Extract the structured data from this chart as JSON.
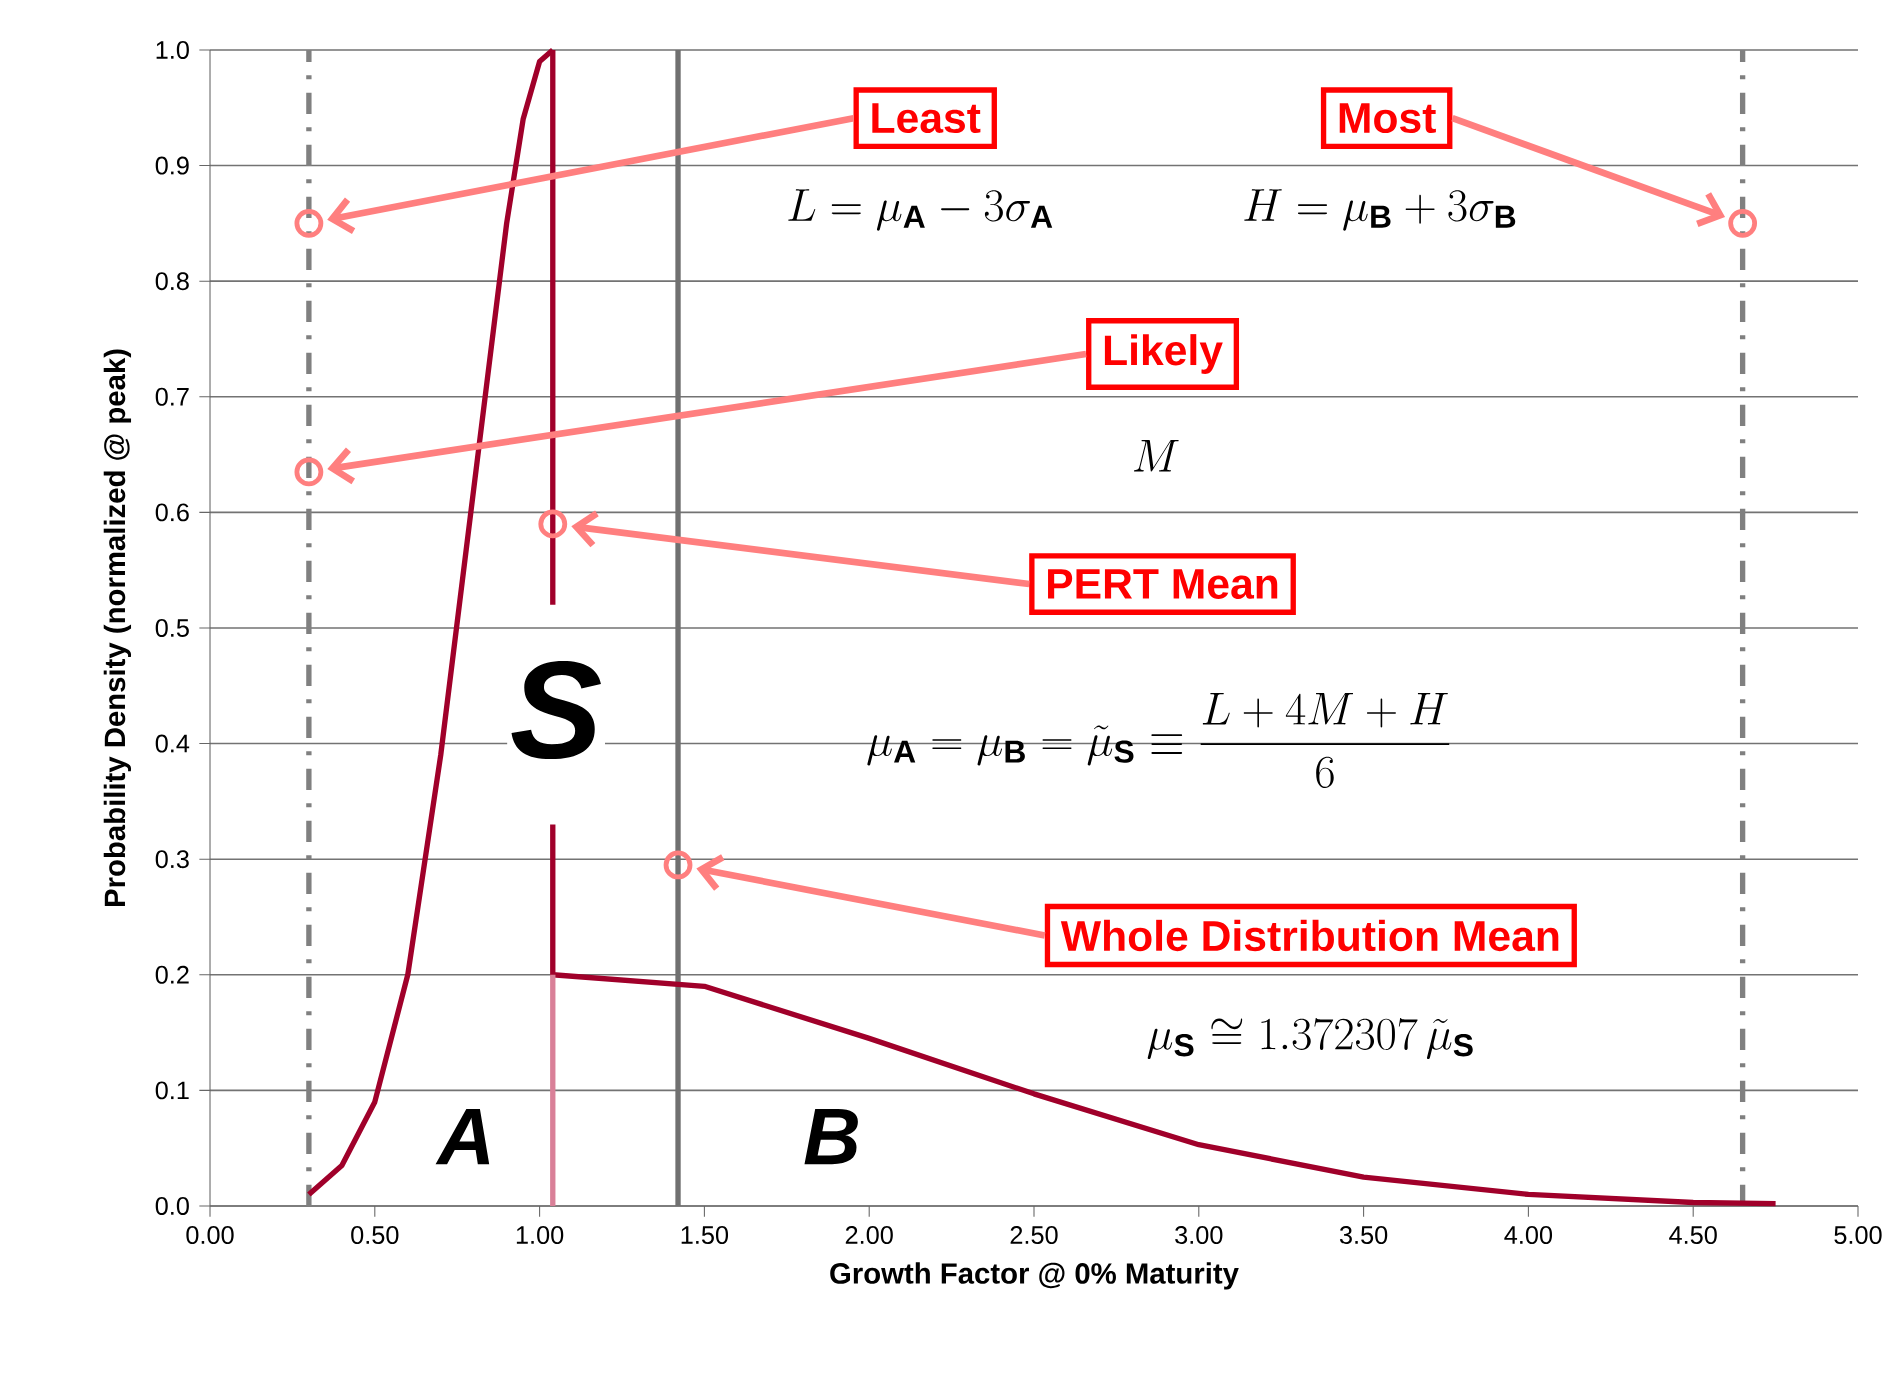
{
  "chart_data": {
    "type": "line",
    "xlabel": "Growth Factor @ 0% Maturity",
    "ylabel": "Probability Density (normalized @ peak)",
    "xlim": [
      0,
      5
    ],
    "ylim": [
      0,
      1
    ],
    "xticks": [
      {
        "value": 0,
        "label": "0.00"
      },
      {
        "value": 0.5,
        "label": "0.50"
      },
      {
        "value": 1,
        "label": "1.00"
      },
      {
        "value": 1.5,
        "label": "1.50"
      },
      {
        "value": 2,
        "label": "2.00"
      },
      {
        "value": 2.5,
        "label": "2.50"
      },
      {
        "value": 3,
        "label": "3.00"
      },
      {
        "value": 3.5,
        "label": "3.50"
      },
      {
        "value": 4,
        "label": "4.00"
      },
      {
        "value": 4.5,
        "label": "4.50"
      },
      {
        "value": 5,
        "label": "5.00"
      }
    ],
    "yticks": [
      {
        "value": 0,
        "label": "0.0"
      },
      {
        "value": 0.1,
        "label": "0.1"
      },
      {
        "value": 0.2,
        "label": "0.2"
      },
      {
        "value": 0.3,
        "label": "0.3"
      },
      {
        "value": 0.4,
        "label": "0.4"
      },
      {
        "value": 0.5,
        "label": "0.5"
      },
      {
        "value": 0.6,
        "label": "0.6"
      },
      {
        "value": 0.7,
        "label": "0.7"
      },
      {
        "value": 0.8,
        "label": "0.8"
      },
      {
        "value": 0.9,
        "label": "0.9"
      },
      {
        "value": 1,
        "label": "1.0"
      }
    ],
    "grid": "y",
    "series": [
      {
        "color": "#a0002a",
        "line_style": "solid",
        "x": [
          0.3,
          0.4,
          0.5,
          0.6,
          0.7,
          0.8,
          0.9,
          0.95,
          1.0,
          1.04
        ],
        "values": [
          0.01,
          0.035,
          0.09,
          0.2,
          0.39,
          0.62,
          0.85,
          0.94,
          0.99,
          1.0
        ]
      },
      {
        "color": "#a0002a",
        "line_style": "solid",
        "x": [
          1.04,
          1.04
        ],
        "values": [
          1.0,
          0.52
        ]
      },
      {
        "color": "#a0002a",
        "line_style": "solid",
        "x": [
          1.04,
          1.04,
          1.5,
          2.0,
          2.5,
          3.0,
          3.5,
          4.0,
          4.5,
          4.75
        ],
        "values": [
          0.33,
          0.2,
          0.19,
          0.145,
          0.097,
          0.053,
          0.025,
          0.01,
          0.003,
          0.002
        ]
      },
      {
        "color": "#d98098",
        "line_style": "solid",
        "x": [
          1.04,
          1.04
        ],
        "values": [
          0,
          0.2
        ]
      },
      {
        "type": "scatter",
        "color": "#ff7f7f",
        "marker": "circle",
        "x": [
          0.3,
          4.65,
          0.3,
          1.04,
          1.42
        ],
        "values": [
          0.85,
          0.85,
          0.635,
          0.59,
          0.295
        ]
      }
    ],
    "ref_lines": [
      {
        "axis": "x",
        "value": 0.3,
        "color": "#808080",
        "line_style": "dashdot"
      },
      {
        "axis": "x",
        "value": 4.65,
        "color": "#808080",
        "line_style": "dashdot"
      },
      {
        "axis": "x",
        "value": 1.42,
        "color": "#707070",
        "line_style": "solid"
      }
    ],
    "annotations": [
      "Least",
      "Most",
      "Likely",
      "PERT Mean",
      "Whole Distribution Mean",
      "L=\\mu_{\\mathbf{A}}-3\\sigma_{\\mathbf{A}}",
      "H=\\mu_{\\mathbf{B}}+3\\sigma_{\\mathbf{B}}",
      "M",
      "\\mu_{\\mathbf{A}}=\\mu_{\\mathbf{B}}=\\tilde{\\mu}_{\\mathbf{S}}\\equiv\\frac{L+4M+H}{6}",
      "\\mu_{\\mathbf{S}}\\cong 1.372307\\,\\tilde{\\mu}_{\\mathbf{S}}",
      "S",
      "A",
      "B"
    ]
  }
}
